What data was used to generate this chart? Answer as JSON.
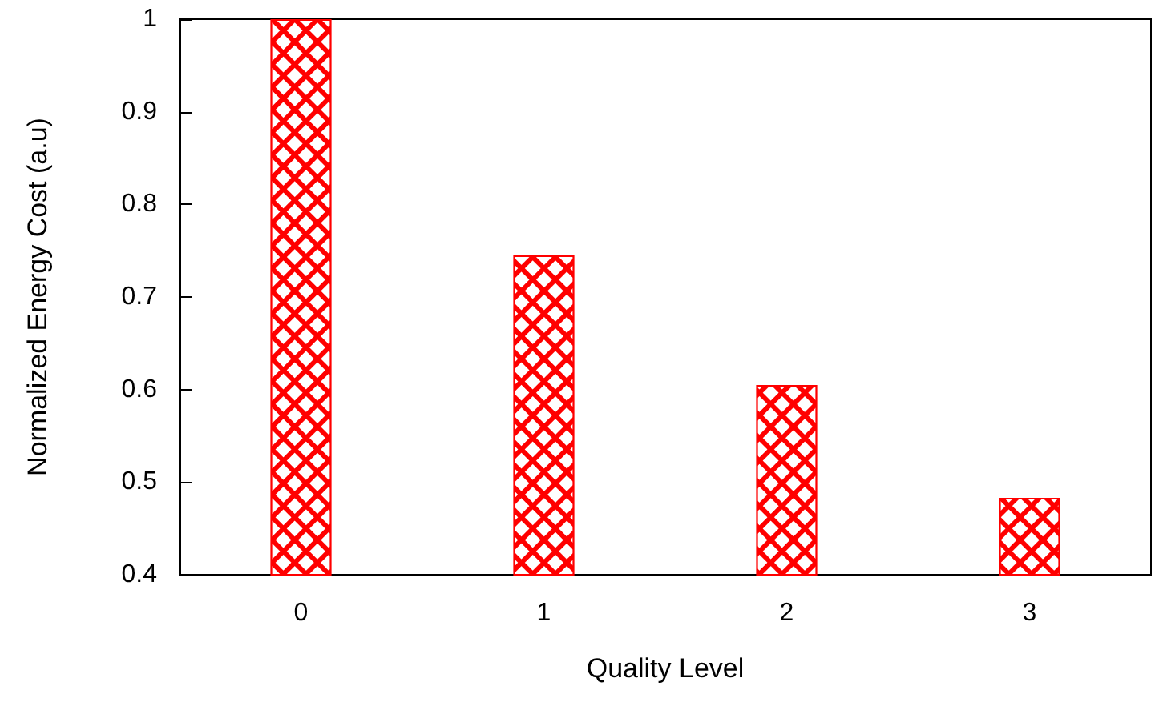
{
  "chart_data": {
    "type": "bar",
    "xlabel": "Quality Level",
    "ylabel": "Normalized Energy Cost (a.u)",
    "categories": [
      "0",
      "1",
      "2",
      "3"
    ],
    "values": [
      1.0,
      0.745,
      0.605,
      0.483
    ],
    "color": "#ff0000",
    "ylim": [
      0.4,
      1
    ],
    "yticks": [
      0.4,
      0.5,
      0.6,
      0.7,
      0.8,
      0.9,
      1
    ],
    "grid": false
  }
}
